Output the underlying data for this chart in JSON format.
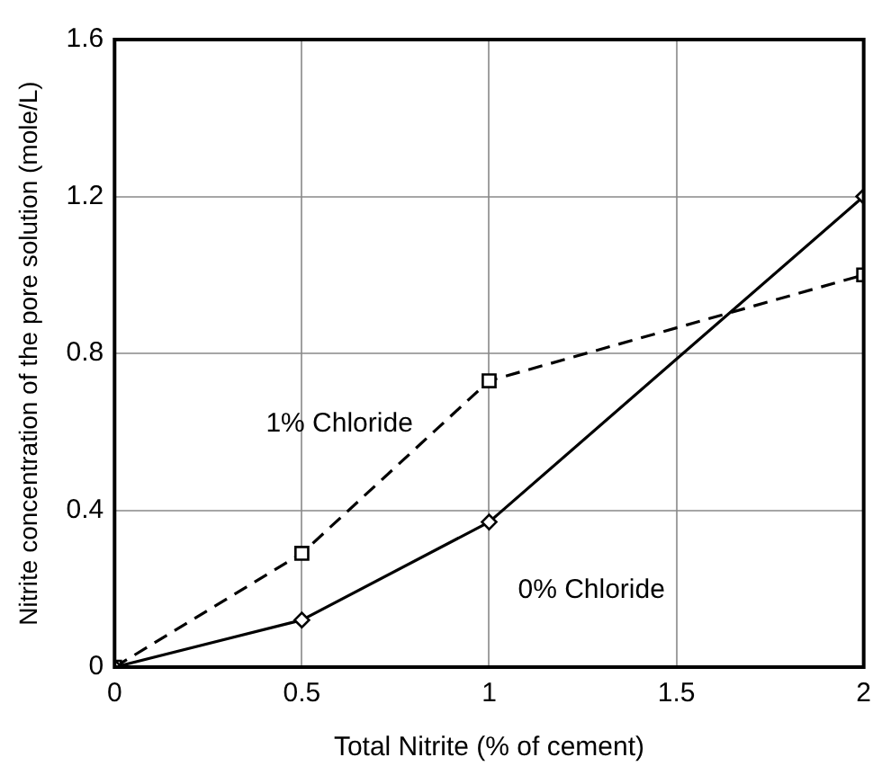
{
  "chart_data": {
    "type": "line",
    "xlabel": "Total Nitrite (% of cement)",
    "ylabel": "Nitrite concentration of the pore solution (mole/L)",
    "x": [
      0,
      0.5,
      1,
      2
    ],
    "series": [
      {
        "name": "0% Chloride",
        "color": "#000000",
        "values": [
          0,
          0.12,
          0.37,
          1.2
        ],
        "marker": "diamond",
        "line_style": "solid"
      },
      {
        "name": "1% Chloride",
        "color": "#000000",
        "values": [
          0,
          0.29,
          0.73,
          1.0
        ],
        "marker": "square",
        "line_style": "dashed"
      }
    ],
    "xlim": [
      0,
      2
    ],
    "xticks": [
      0,
      0.5,
      1,
      1.5,
      2
    ],
    "ylim": [
      0,
      1.6
    ],
    "yticks": [
      0,
      0.4,
      0.8,
      1.2,
      1.6
    ],
    "grid": true,
    "legend": false
  }
}
